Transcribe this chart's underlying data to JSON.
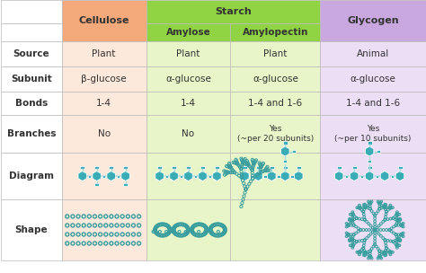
{
  "col_headers": [
    "",
    "Cellulose",
    "Amylose",
    "Amylopectin",
    "Glycogen"
  ],
  "starch_header": "Starch",
  "col_header_colors": [
    "#ffffff",
    "#f4a97a",
    "#90d444",
    "#90d444",
    "#c9a8e0"
  ],
  "starch_header_color": "#90d444",
  "glycogen_header_color": "#c9a8e0",
  "cellulose_header_color": "#f4a97a",
  "row_labels": [
    "Source",
    "Subunit",
    "Bonds",
    "Branches",
    "Diagram",
    "Shape"
  ],
  "row_colors_cellulose": "#fde8dc",
  "row_colors_starch": "#e8f5c8",
  "row_colors_glycogen": "#ecdff5",
  "cell_data": {
    "Source": [
      "Plant",
      "Plant",
      "Plant",
      "Animal"
    ],
    "Subunit": [
      "β-glucose",
      "α-glucose",
      "α-glucose",
      "α-glucose"
    ],
    "Bonds": [
      "1-4",
      "1-4",
      "1-4 and 1-6",
      "1-4 and 1-6"
    ],
    "Branches": [
      "No",
      "No",
      "Yes\n(~per 20 subunits)",
      "Yes\n(~per 10 subunits)"
    ]
  },
  "bg_color": "#ffffff",
  "teal": "#3aacb5",
  "teal_outline": "#2e8f97"
}
